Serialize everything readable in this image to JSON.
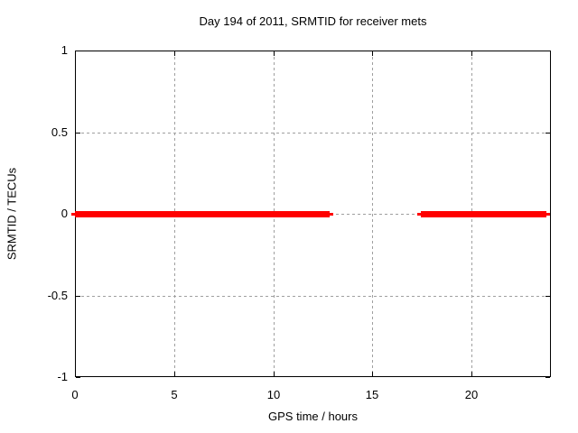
{
  "chart_data": {
    "type": "line",
    "title": "Day 194 of 2011, SRMTID for receiver mets",
    "xlabel": "GPS time / hours",
    "ylabel": "SRMTID / TECUs",
    "xlim": [
      0,
      24
    ],
    "ylim": [
      -1,
      1
    ],
    "xticks": [
      0,
      5,
      10,
      15,
      20
    ],
    "yticks": [
      -1,
      -0.5,
      0,
      0.5,
      1
    ],
    "grid": true,
    "legend": "none",
    "colors": {
      "series": "#ff0000",
      "grid": "#9f9f9f",
      "border": "#000000",
      "background": "#ffffff",
      "text": "#000000"
    },
    "series": [
      {
        "name": "SRMTID",
        "color": "#ff0000",
        "y": 0,
        "segments": [
          {
            "x_start": 0,
            "x_end": 12.85
          },
          {
            "x_start": 17.45,
            "x_end": 23.8
          }
        ]
      }
    ]
  }
}
